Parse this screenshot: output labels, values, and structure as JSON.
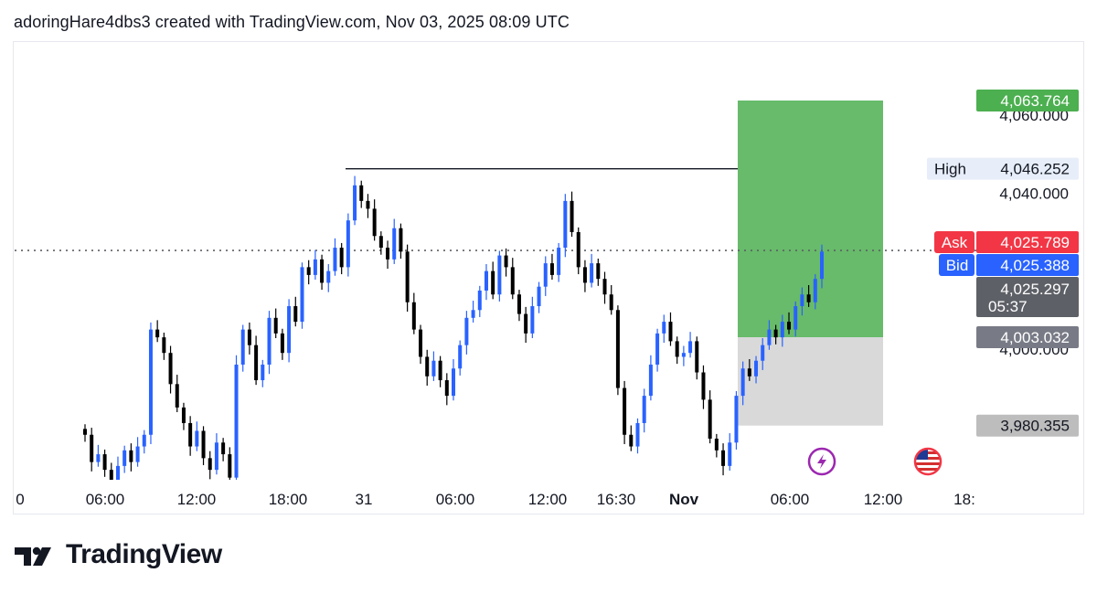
{
  "header": {
    "text": "adoringHare4dbs3 created with TradingView.com, Nov 03, 2025 08:09 UTC"
  },
  "logo": {
    "text": "TradingView"
  },
  "colors": {
    "up": "#2962ff",
    "down": "#000000",
    "profit": "#4caf50",
    "loss": "#bdbdbd",
    "ask": "#f23645",
    "bid": "#2962ff",
    "last": "#5d6066",
    "high_label_bg": "#e8eef9"
  },
  "chart_data": {
    "type": "candlestick",
    "ylim": [
      3970,
      4072
    ],
    "x_ticks": [
      "0",
      "06:00",
      "12:00",
      "18:00",
      "31",
      "06:00",
      "12:00",
      "16:30",
      "Nov",
      "06:00",
      "12:00",
      "18:"
    ],
    "y_ticks": [
      {
        "value": 4060,
        "label": "4,060.000"
      },
      {
        "value": 4040,
        "label": "4,040.000"
      },
      {
        "value": 4000,
        "label": "4,000.000"
      }
    ],
    "price_labels": {
      "target": {
        "value": 4063.764,
        "label": "4,063.764"
      },
      "high": {
        "name": "High",
        "value": 4046.252,
        "label": "4,046.252"
      },
      "ask": {
        "name": "Ask",
        "value": 4025.789,
        "label": "4,025.789"
      },
      "bid": {
        "name": "Bid",
        "value": 4025.388,
        "label": "4,025.388"
      },
      "last": {
        "value": 4025.297,
        "label": "4,025.297",
        "countdown": "05:37"
      },
      "entry": {
        "value": 4003.032,
        "label": "4,003.032"
      },
      "stop": {
        "value": 3980.355,
        "label": "3,980.355"
      }
    },
    "long_position": {
      "entry": 4003.032,
      "target": 4063.764,
      "stop": 3980.355
    },
    "high_line": {
      "value": 4046.252
    },
    "current_price_line": {
      "value": 4025.297
    },
    "events": [
      "lightning-event-icon",
      "us-flag-event-icon"
    ],
    "closes": [
      3978,
      3971,
      3973,
      3969,
      3966,
      3970,
      3974,
      3971,
      3975,
      3978,
      4005,
      4003,
      3999,
      3991,
      3985,
      3981,
      3975,
      3979,
      3972,
      3969,
      3976,
      3973,
      3967,
      3996,
      4005,
      4001,
      3992,
      3996,
      4008,
      4004,
      3999,
      4011,
      4007,
      4021,
      4019,
      4023,
      4017,
      4020,
      4026,
      4021,
      4033,
      4042,
      4038,
      4036,
      4029,
      4026,
      4023,
      4031,
      4025,
      4012,
      4005,
      3998,
      3993,
      3997,
      3992,
      3988,
      3995,
      4001,
      4008,
      4010,
      4015,
      4020,
      4014,
      4024,
      4021,
      4014,
      4009,
      4004,
      4011,
      4016,
      4022,
      4019,
      4026,
      4038,
      4030,
      4021,
      4017,
      4022,
      4018,
      4014,
      4010,
      3990,
      3978,
      3975,
      3981,
      3988,
      3996,
      4004,
      4007,
      4002,
      3998,
      3999,
      4002,
      3994,
      3987,
      3977,
      3974,
      3970,
      3976,
      3988,
      3995,
      3993,
      3997,
      4001,
      4005,
      4003,
      4007,
      4005,
      4011,
      4014,
      4012,
      4018,
      4025
    ]
  }
}
